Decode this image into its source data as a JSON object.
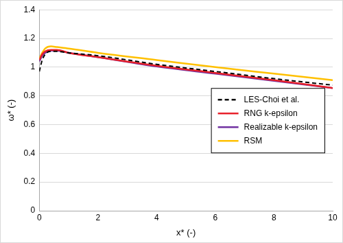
{
  "chart_data": {
    "type": "line",
    "x_label": "x* (-)",
    "y_label": "ω* (-)",
    "x": [
      0,
      0.1,
      0.2,
      0.4,
      0.6,
      1,
      2,
      4,
      6,
      8,
      10
    ],
    "series": [
      {
        "name": "LES-Choi et al.",
        "color": "#000000",
        "line_style": "dashed",
        "marker": "none",
        "values": [
          0.97,
          1.05,
          1.09,
          1.11,
          1.11,
          1.1,
          1.08,
          1.02,
          0.97,
          0.92,
          0.875
        ]
      },
      {
        "name": "RNG k-epsilon",
        "color": "#e8202a",
        "line_style": "solid",
        "marker": "none",
        "values": [
          1.05,
          1.09,
          1.11,
          1.12,
          1.12,
          1.1,
          1.07,
          1.01,
          0.96,
          0.91,
          0.855
        ]
      },
      {
        "name": "Realizable k-epsilon",
        "color": "#7030a0",
        "line_style": "solid",
        "marker": "none",
        "values": [
          1.04,
          1.08,
          1.1,
          1.115,
          1.115,
          1.1,
          1.07,
          1.005,
          0.955,
          0.905,
          0.855
        ]
      },
      {
        "name": "RSM",
        "color": "#ffc000",
        "line_style": "solid",
        "marker": "none",
        "values": [
          1.06,
          1.1,
          1.13,
          1.145,
          1.14,
          1.13,
          1.1,
          1.05,
          1.0,
          0.955,
          0.91
        ]
      }
    ],
    "xlim": [
      0,
      10
    ],
    "xticks": [
      0,
      2,
      4,
      6,
      8,
      10
    ],
    "ylim": [
      0,
      1.4
    ],
    "yticks": [
      0,
      0.2,
      0.4,
      0.6,
      0.8,
      1,
      1.2,
      1.4
    ],
    "grid": "y",
    "legend": "center right"
  }
}
